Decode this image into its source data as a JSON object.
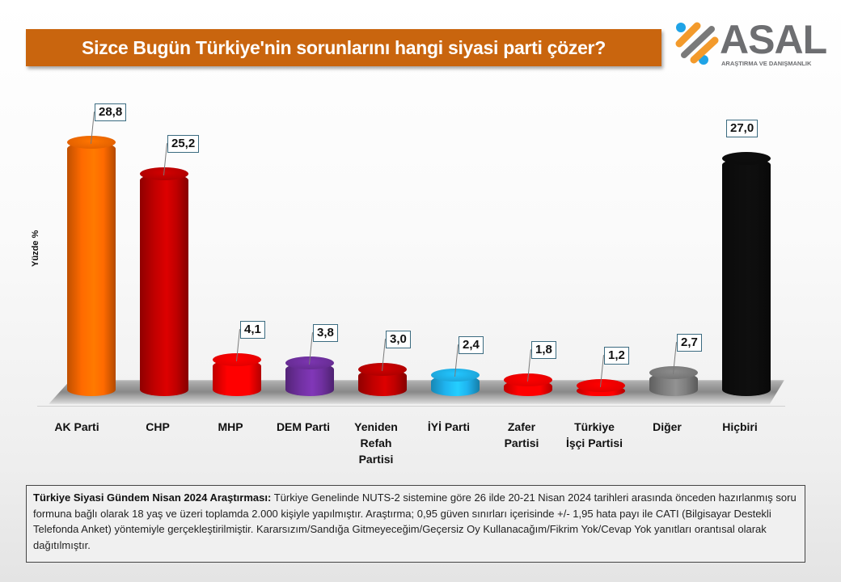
{
  "title": "Sizce Bugün Türkiye'nin sorunlarını hangi siyasi parti çözer?",
  "logo": {
    "name": "ASAL",
    "subtitle": "ARAŞTIRMA VE DANIŞMANLIK"
  },
  "chart_data": {
    "type": "bar",
    "title": "Sizce Bugün Türkiye'nin sorunlarını hangi siyasi parti çözer?",
    "xlabel": "",
    "ylabel": "Yüzde %",
    "categories": [
      "AK Parti",
      "CHP",
      "MHP",
      "DEM Parti",
      "Yeniden Refah Partisi",
      "İYİ Parti",
      "Zafer Partisi",
      "Türkiye İşçi Partisi",
      "Diğer",
      "Hiçbiri"
    ],
    "values": [
      28.8,
      25.2,
      4.1,
      3.8,
      3.0,
      2.4,
      1.8,
      1.2,
      2.7,
      27.0
    ],
    "value_labels": [
      "28,8",
      "25,2",
      "4,1",
      "3,8",
      "3,0",
      "2,4",
      "1,8",
      "1,2",
      "2,7",
      "27,0"
    ],
    "colors": [
      "#ff6a00",
      "#c00000",
      "#ff0000",
      "#7030a0",
      "#c00000",
      "#1fb4f0",
      "#ff0000",
      "#ff0000",
      "#7f7f7f",
      "#0d0d0d"
    ],
    "grid": false,
    "legend": "none",
    "style": "3d-cylinder"
  },
  "categories_display": [
    [
      "AK Parti"
    ],
    [
      "CHP"
    ],
    [
      "MHP"
    ],
    [
      "DEM Parti"
    ],
    [
      "Yeniden",
      "Refah",
      "Partisi"
    ],
    [
      "İYİ Parti"
    ],
    [
      "Zafer",
      "Partisi"
    ],
    [
      "Türkiye",
      "İşçi Partisi"
    ],
    [
      "Diğer"
    ],
    [
      "Hiçbiri"
    ]
  ],
  "note": {
    "bold": "Türkiye Siyasi Gündem Nisan 2024 Araştırması:",
    "text": " Türkiye Genelinde NUTS-2 sistemine göre 26 ilde 20-21 Nisan 2024 tarihleri arasında önceden hazırlanmış soru formuna bağlı olarak 18 yaş ve üzeri toplamda 2.000 kişiyle yapılmıştır. Araştırma; 0,95 güven sınırları içerisinde +/- 1,95 hata payı ile CATI (Bilgisayar Destekli Telefonda Anket) yöntemiyle gerçekleştirilmiştir. Kararsızım/Sandığa Gitmeyeceğim/Geçersiz Oy Kullanacağım/Fikrim Yok/Cevap Yok yanıtları orantısal olarak dağıtılmıştır."
  }
}
